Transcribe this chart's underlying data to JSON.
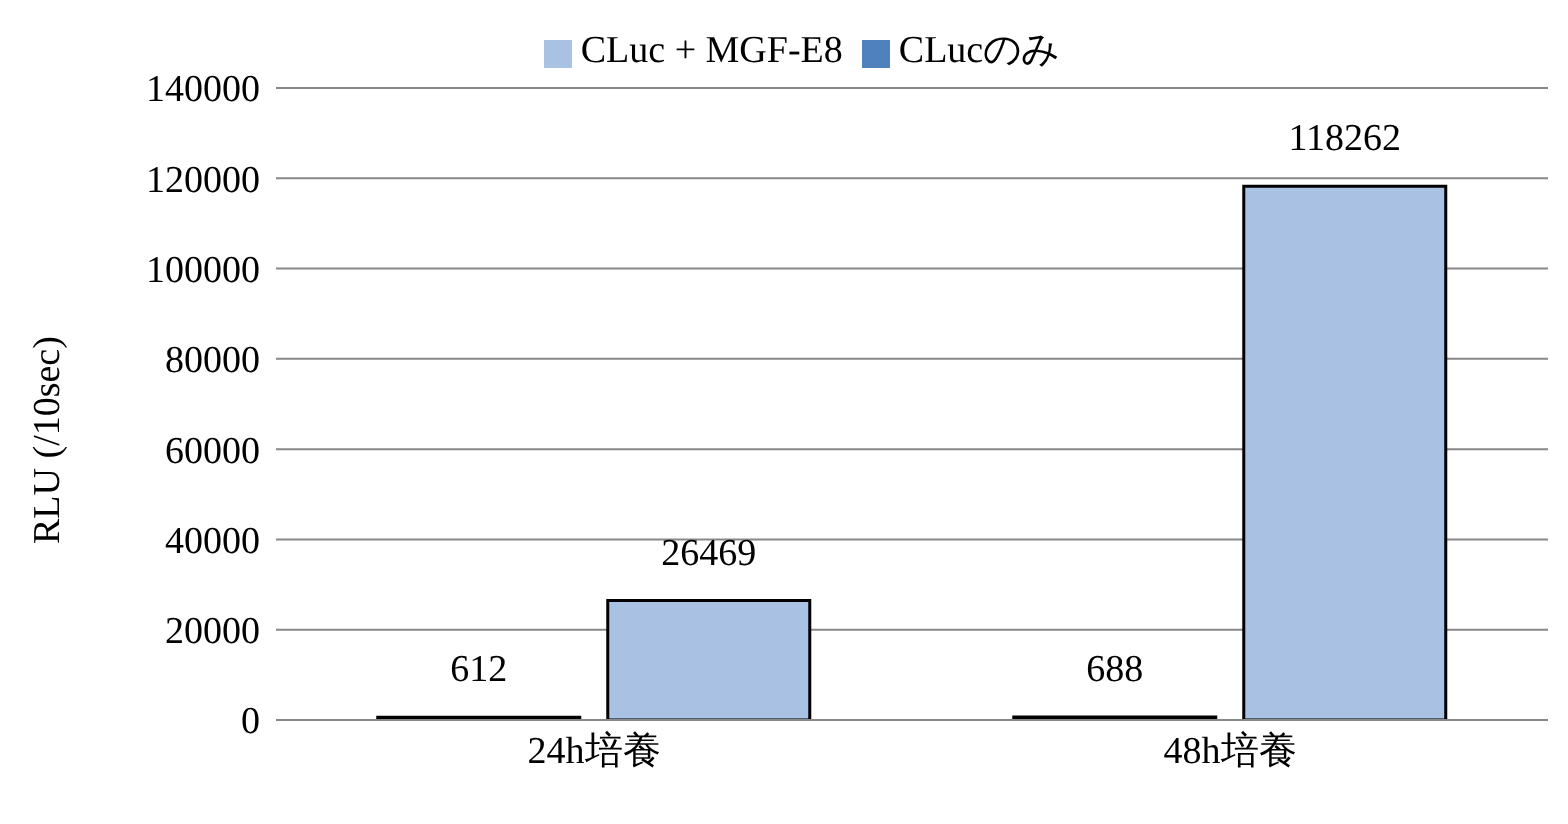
{
  "chart_data": {
    "type": "bar",
    "categories": [
      "24h培養",
      "48h培養"
    ],
    "series": [
      {
        "name": "CLucのみ",
        "color": "#4f81bd",
        "values": [
          612,
          688
        ]
      },
      {
        "name": "CLuc + MGF-E8",
        "color": "#a9c1e3",
        "values": [
          26469,
          118262
        ]
      }
    ],
    "ylabel": "RLU (/10sec)",
    "ylim": [
      0,
      140000
    ],
    "yticks": [
      0,
      20000,
      40000,
      60000,
      80000,
      100000,
      120000,
      140000
    ],
    "grid": "y",
    "legend": "top",
    "data_labels": true
  }
}
